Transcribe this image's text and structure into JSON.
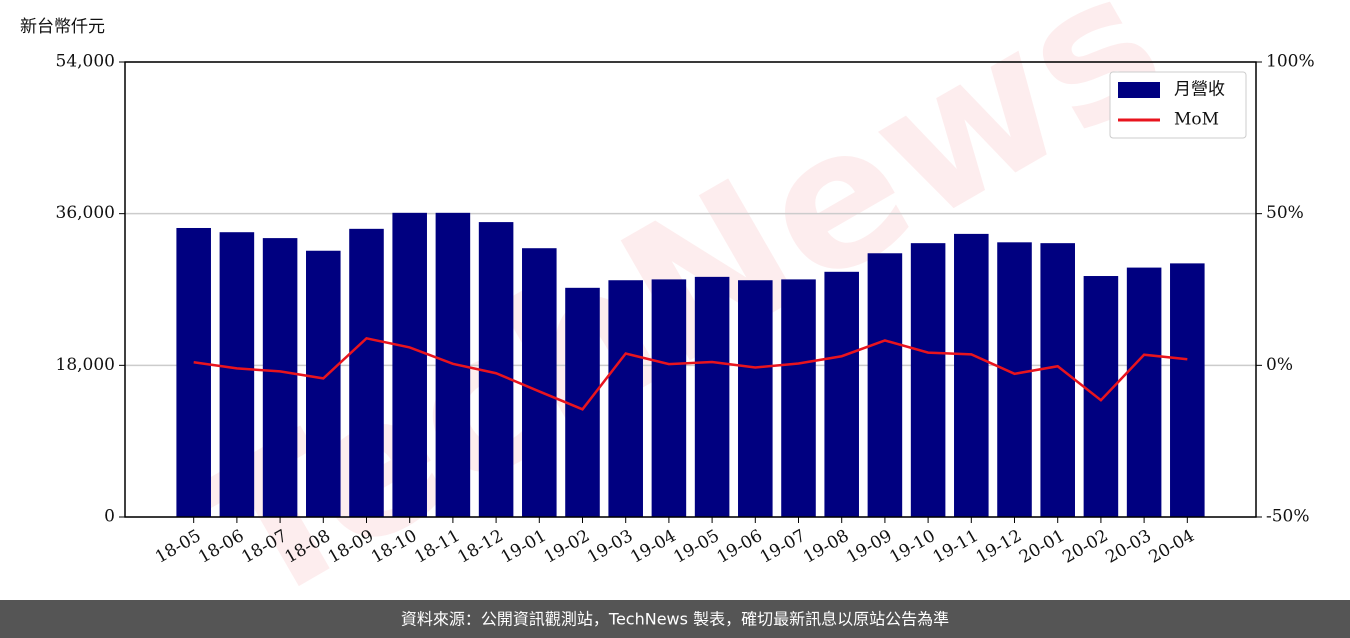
{
  "chart_data": {
    "type": "bar-line",
    "y_unit_label": "新台幣仟元",
    "watermark": "TechNews",
    "footer": "資料來源：公開資訊觀測站，TechNews 製表，確切最新訊息以原站公告為準",
    "categories": [
      "18-05",
      "18-06",
      "18-07",
      "18-08",
      "18-09",
      "18-10",
      "18-11",
      "18-12",
      "19-01",
      "19-02",
      "19-03",
      "19-04",
      "19-05",
      "19-06",
      "19-07",
      "19-08",
      "19-09",
      "19-10",
      "19-11",
      "19-12",
      "20-01",
      "20-02",
      "20-03",
      "20-04"
    ],
    "series": [
      {
        "name": "月營收",
        "type": "bar",
        "color": "#000080",
        "values": [
          34300,
          33800,
          33100,
          31600,
          34200,
          36100,
          36100,
          35000,
          31900,
          27200,
          28100,
          28200,
          28500,
          28100,
          28200,
          29100,
          31300,
          32500,
          33600,
          32600,
          32500,
          28600,
          29600,
          30100
        ]
      },
      {
        "name": "MoM",
        "type": "line",
        "axis": "y2",
        "color": "#e8141e",
        "values": [
          1.0,
          -1.0,
          -2.0,
          -4.3,
          8.9,
          5.9,
          0.5,
          -2.6,
          -8.6,
          -14.5,
          3.9,
          0.4,
          1.1,
          -0.7,
          0.6,
          3.0,
          8.2,
          4.2,
          3.6,
          -2.8,
          -0.3,
          -11.5,
          3.5,
          2.0
        ]
      }
    ],
    "ylim": [
      0,
      54000
    ],
    "yticks": [
      {
        "value": 0,
        "label": "0"
      },
      {
        "value": 18000,
        "label": "18,000"
      },
      {
        "value": 36000,
        "label": "36,000"
      },
      {
        "value": 54000,
        "label": "54,000"
      }
    ],
    "y2lim": [
      -50,
      100
    ],
    "y2ticks": [
      {
        "value": -50,
        "label": "-50%"
      },
      {
        "value": 0,
        "label": "0%"
      },
      {
        "value": 50,
        "label": "50%"
      },
      {
        "value": 100,
        "label": "100%"
      }
    ],
    "grid": true,
    "legend": "upper right"
  }
}
